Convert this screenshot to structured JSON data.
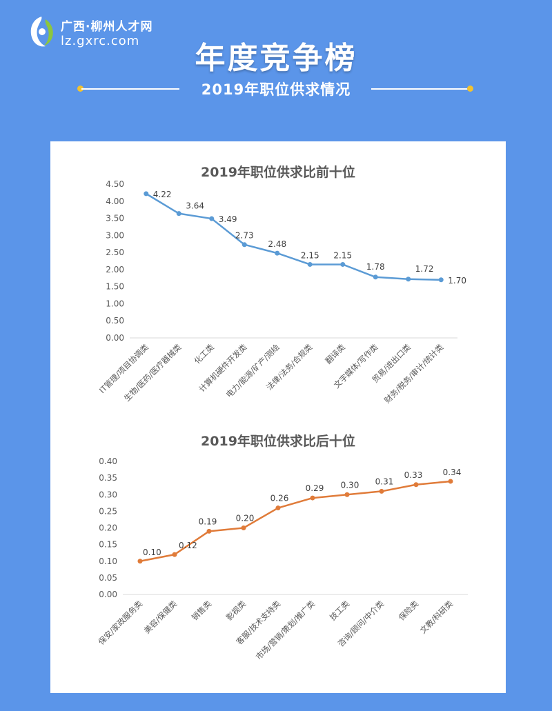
{
  "logo": {
    "name": "广西·柳州人才网",
    "url": "lz.gxrc.com"
  },
  "header": {
    "title": "年度竞争榜",
    "subtitle": "2019年职位供求情况"
  },
  "colors": {
    "background": "#5b95e9",
    "series_top": "#5b9bd5",
    "series_bottom": "#e07b39",
    "accent_dot": "#f2c230"
  },
  "chart_data": [
    {
      "type": "line",
      "title": "2019年职位供求比前十位",
      "categories": [
        "IT管理/项目协调类",
        "生物/医药/医疗器械类",
        "化工类",
        "计算机硬件开发类",
        "电力/能源/矿产/测绘",
        "法律/法务/合规类",
        "翻译类",
        "文字媒体/写作类",
        "贸易/进出口类",
        "财务/税务/审计/统计类"
      ],
      "values": [
        4.22,
        3.64,
        3.49,
        2.73,
        2.48,
        2.15,
        2.15,
        1.78,
        1.72,
        1.7
      ],
      "value_labels": [
        "4.22",
        "3.64",
        "3.49",
        "2.73",
        "2.48",
        "2.15",
        "2.15",
        "1.78",
        "1.72",
        "1.70"
      ],
      "ylim": [
        0,
        4.5
      ],
      "yticks": [
        "0.00",
        "0.50",
        "1.00",
        "1.50",
        "2.00",
        "2.50",
        "3.00",
        "3.50",
        "4.00",
        "4.50"
      ],
      "grid": false,
      "color": "#5b9bd5"
    },
    {
      "type": "line",
      "title": "2019年职位供求比后十位",
      "categories": [
        "保安/家政服务类",
        "美容/保健类",
        "销售类",
        "影视类",
        "客服/技术支持类",
        "市场/营销/策划/推广类",
        "技工类",
        "咨询/顾问/中介类",
        "保险类",
        "文教/科研类"
      ],
      "values": [
        0.1,
        0.12,
        0.19,
        0.2,
        0.26,
        0.29,
        0.3,
        0.31,
        0.33,
        0.34
      ],
      "value_labels": [
        "0.10",
        "0.12",
        "0.19",
        "0.20",
        "0.26",
        "0.29",
        "0.30",
        "0.31",
        "0.33",
        "0.34"
      ],
      "ylim": [
        0,
        0.4
      ],
      "yticks": [
        "0.00",
        "0.05",
        "0.10",
        "0.15",
        "0.20",
        "0.25",
        "0.30",
        "0.35",
        "0.40"
      ],
      "grid": false,
      "color": "#e07b39"
    }
  ]
}
